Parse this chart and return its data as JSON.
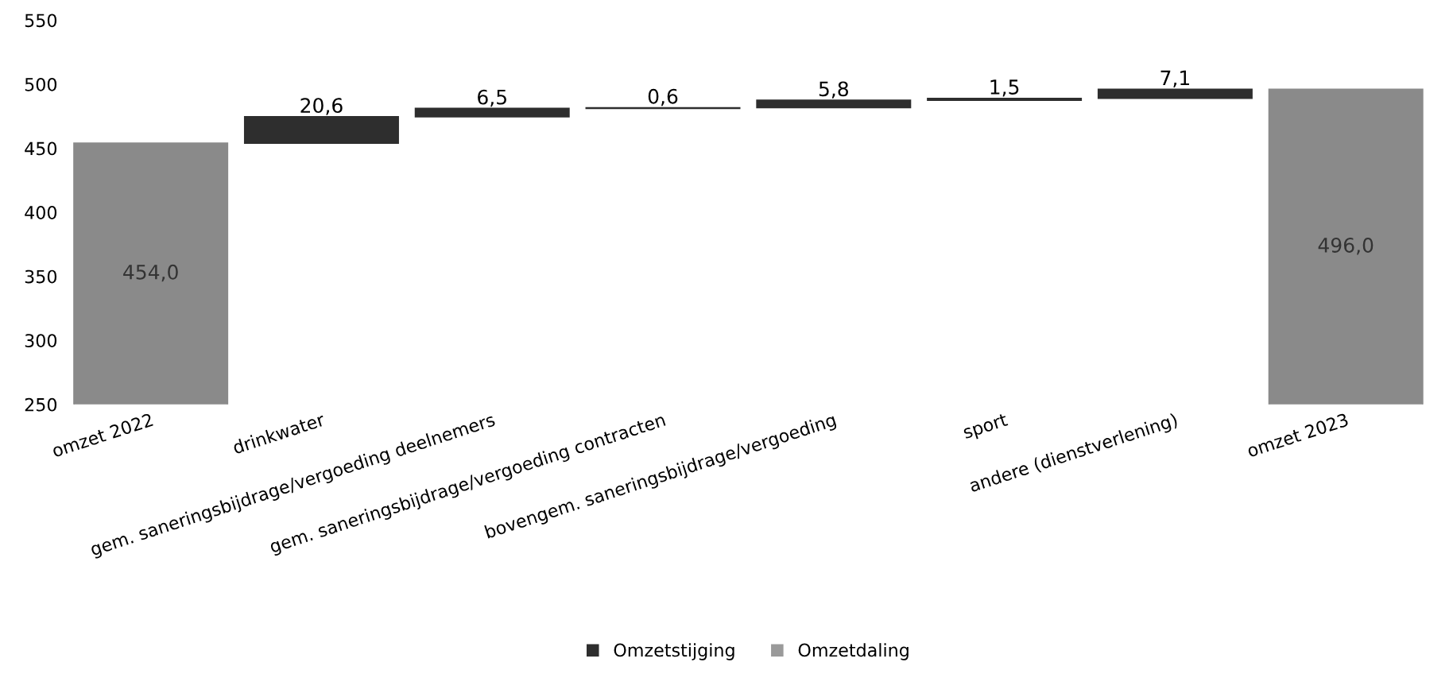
{
  "chart_data": {
    "type": "bar",
    "categories": [
      "omzet 2022",
      "drinkwater",
      "gem. saneringsbijdrage/vergoeding deelnemers",
      "gem. saneringsbijdrage/vergoeding contracten",
      "bovengem. saneringsbijdrage/vergoeding",
      "sport",
      "andere (dienstverlening)",
      "omzet 2023"
    ],
    "series": [
      {
        "color": "#8a8a8a",
        "values": [
          454.0,
          null,
          null,
          null,
          null,
          null,
          null,
          496.0
        ],
        "value_labels": [
          "454,0",
          null,
          null,
          null,
          null,
          null,
          null,
          "496,0"
        ]
      },
      {
        "name": "Omzetstijging",
        "color": "#2e2e2e",
        "values": [
          null,
          20.6,
          6.5,
          0.6,
          5.8,
          1.5,
          7.1,
          null
        ],
        "base": [
          null,
          454.0,
          474.6,
          481.1,
          481.7,
          487.5,
          489.0,
          null
        ],
        "value_labels": [
          null,
          "20,6",
          "6,5",
          "0,6",
          "5,8",
          "1,5",
          "7,1",
          null
        ]
      },
      {
        "name": "Omzetdaling",
        "color": "#9a9a9a",
        "values": [
          null,
          null,
          null,
          null,
          null,
          null,
          null,
          null
        ]
      }
    ],
    "ylim": [
      250,
      550
    ],
    "yticks": [
      250,
      300,
      350,
      400,
      450,
      500,
      550
    ],
    "grid": false,
    "legend": "bottom"
  }
}
